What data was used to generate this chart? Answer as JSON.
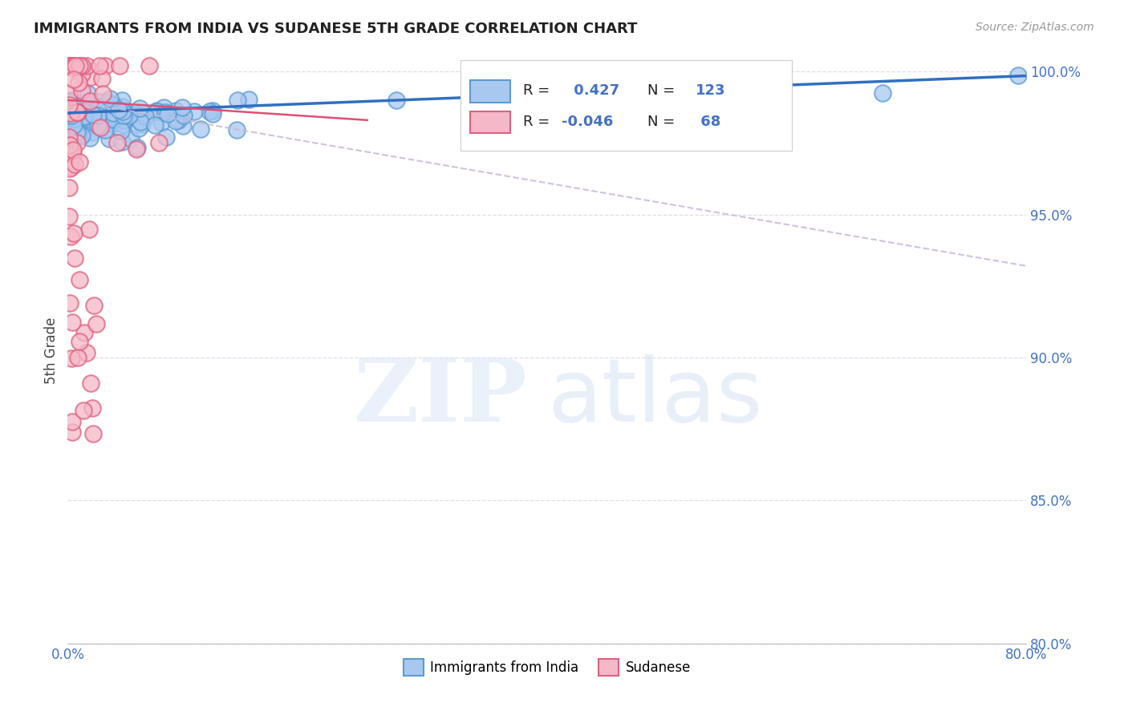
{
  "title": "IMMIGRANTS FROM INDIA VS SUDANESE 5TH GRADE CORRELATION CHART",
  "source": "Source: ZipAtlas.com",
  "ylabel": "5th Grade",
  "xlim": [
    0.0,
    0.8
  ],
  "ylim": [
    0.965,
    1.005
  ],
  "x_tick_positions": [
    0.0,
    0.1,
    0.2,
    0.3,
    0.4,
    0.5,
    0.6,
    0.7,
    0.8
  ],
  "x_tick_labels": [
    "0.0%",
    "",
    "",
    "",
    "",
    "",
    "",
    "",
    "80.0%"
  ],
  "y_tick_positions": [
    0.8,
    0.85,
    0.9,
    0.95,
    1.0
  ],
  "y_tick_labels": [
    "80.0%",
    "85.0%",
    "90.0%",
    "95.0%",
    "100.0%"
  ],
  "india_color": "#a8c8f0",
  "india_edge_color": "#5b9bd5",
  "sudanese_color": "#f5b8c8",
  "sudanese_edge_color": "#e06080",
  "india_R": 0.427,
  "india_N": 123,
  "sudanese_R": -0.046,
  "sudanese_N": 68,
  "india_line_color": "#3070c0",
  "sudanese_line_color": "#e05075",
  "sudanese_trend_color": "#c8b8d8",
  "background_color": "#ffffff",
  "grid_color": "#ddd8e8",
  "tick_color": "#4472c4",
  "title_color": "#222222",
  "source_color": "#999999",
  "ylabel_color": "#444444"
}
